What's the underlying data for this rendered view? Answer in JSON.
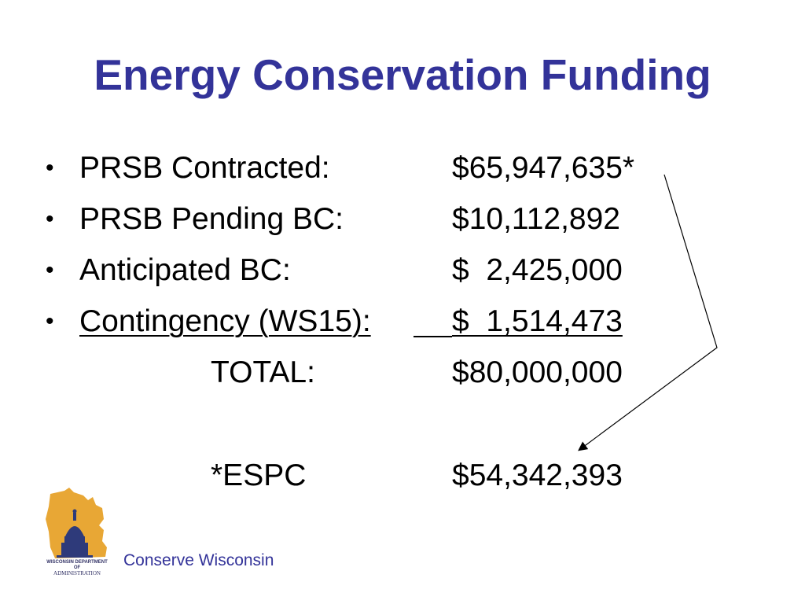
{
  "slide": {
    "title": "Energy Conservation Funding",
    "items": [
      {
        "bullet": "•",
        "label": "PRSB Contracted:",
        "amount": "$65,947,635*"
      },
      {
        "bullet": "•",
        "label": "PRSB Pending BC:",
        "amount": "$10,112,892"
      },
      {
        "bullet": "•",
        "label": "Anticipated BC:",
        "amount": "$  2,425,000"
      },
      {
        "bullet": "•",
        "label": "Contingency (WS15):",
        "amount": "$  1,514,473"
      }
    ],
    "total": {
      "label": "TOTAL:",
      "amount": "$80,000,000"
    },
    "espc": {
      "label": "*ESPC",
      "amount": "$54,342,393"
    },
    "footer": "Conserve Wisconsin",
    "logo": {
      "icon": "wisconsin-capitol-logo-icon",
      "line1": "WISCONSIN DEPARTMENT OF",
      "line2": "ADMINISTRATION",
      "state_color": "#E8A735",
      "dome_color": "#2E3A7A"
    },
    "colors": {
      "title": "#333399",
      "text": "#000000",
      "footer": "#333399"
    }
  }
}
